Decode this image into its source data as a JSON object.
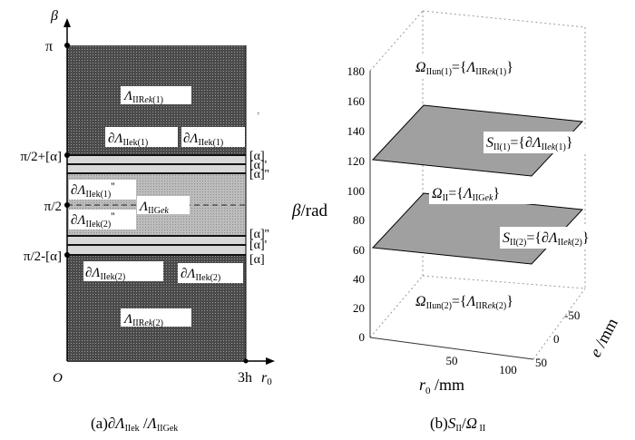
{
  "left_panel": {
    "y_axis_label": "β",
    "x_axis_label": "r0",
    "origin_label": "O",
    "x_end_label": "3h",
    "y_ticks": [
      "π",
      "π/2+[α]",
      "π/2",
      "π/2-[α]"
    ],
    "right_marks": [
      "[α]",
      "[α]'",
      "[α]''",
      "[α]''",
      "[α]'",
      "[α]"
    ],
    "regions": {
      "top": "ΛIIRek(1)",
      "middle": "ΛIIGek",
      "bottom": "ΛIIRek(2)"
    },
    "boundaries": {
      "upper_left": "∂ΛIIek(1)",
      "upper_right": "∂ΛIIek(1)",
      "mid_upper": "∂ΛIIek(1)''",
      "mid_lower": "∂ΛIIek(2)''",
      "lower_left": "∂ΛIIek(2)",
      "lower_right": "∂ΛIIek(2)"
    },
    "caption": "(a)∂ΛIIek/ΛIIGek",
    "colors": {
      "dark_region": "#5a5a5a",
      "light_region": "#b8b8b8",
      "band": "#d4d4d4"
    }
  },
  "right_panel": {
    "z_axis_label": "β/rad",
    "x_axis_label": "r0 /mm",
    "y_axis_label": "e /mm",
    "z_ticks": [
      "0",
      "20",
      "40",
      "60",
      "80",
      "100",
      "120",
      "140",
      "160",
      "180"
    ],
    "x_ticks": [
      "50",
      "100"
    ],
    "y_ticks": [
      "-50",
      "0",
      "50"
    ],
    "labels": {
      "omega_un1": "ΩIIun(1)={ΛIIRek(1)}",
      "s1": "SII(1)={∂ΛIIek(1)}",
      "omega": "ΩII={ΛIIGek}",
      "s2": "SII(2)={∂ΛIIek(2)}",
      "omega_un2": "ΩIIun(2)={ΛIIRek(2)}"
    },
    "caption": "(b)SII/ΩII",
    "colors": {
      "plane_fill": "#9a9a9a",
      "plane_edge": "#000000"
    }
  }
}
